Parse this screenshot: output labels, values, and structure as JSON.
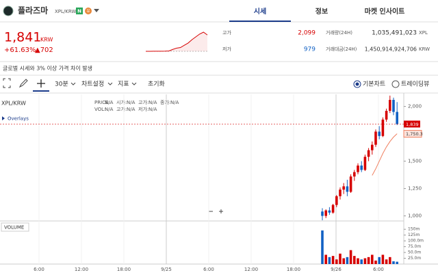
{
  "header": {
    "name": "플라즈마",
    "pair": "XPL/KRW",
    "badges": [
      "N",
      "유"
    ]
  },
  "tabs": [
    "시세",
    "정보",
    "마켓 인사이트"
  ],
  "active_tab": 0,
  "price": {
    "current": "1,841",
    "unit": "KRW",
    "change_rate": "+61.63%",
    "change": "▲702"
  },
  "sparkline": [
    980,
    982,
    985,
    983,
    986,
    990,
    1000,
    1080,
    1150,
    1180,
    1300,
    1420,
    1600,
    1750,
    1900,
    2000,
    1850
  ],
  "stats": [
    {
      "label": "고가",
      "value": "2,099"
    },
    {
      "label": "저가",
      "value": "979"
    },
    {
      "label": "거래량(24H)",
      "value": "1,035,491,023",
      "unit": "XPL"
    },
    {
      "label": "거래대금(24H)",
      "value": "1,450,914,924,706",
      "unit": "KRW"
    }
  ],
  "notice": "글로벌 시세와 3% 이상 가격 차이 발생",
  "toolbar": {
    "interval": "30분",
    "buttons": [
      "차트설정",
      "지표",
      "초기화"
    ],
    "views": [
      "기본차트",
      "트레이딩뷰"
    ],
    "selected_view": 0
  },
  "chart_data": {
    "type": "candlestick",
    "title": "XPL/KRW",
    "overlays": "Overlays",
    "volume_title": "VOLUME",
    "info": [
      [
        [
          "PRICE:",
          "N/A"
        ],
        [
          "시가:",
          "N/A"
        ],
        [
          "고가:",
          "N/A"
        ],
        [
          "종가:",
          "N/A"
        ]
      ],
      [
        [
          "VOL:",
          "N/A"
        ],
        [
          "고가:",
          "N/A"
        ],
        [
          "저가:",
          "N/A"
        ]
      ]
    ],
    "x_labels": [
      "6:00",
      "12:00",
      "18:00",
      "9/25",
      "6:00",
      "12:00",
      "18:00",
      "9/26",
      "6:00"
    ],
    "open": [
      1040,
      1000,
      1050,
      1030,
      1100,
      1180,
      1240,
      1270,
      1220,
      1360,
      1400,
      1460,
      1420,
      1540,
      1600,
      1650,
      1770,
      1730,
      1880,
      1960,
      2060,
      1950
    ],
    "high": [
      1070,
      1060,
      1080,
      1110,
      1190,
      1260,
      1300,
      1330,
      1380,
      1420,
      1480,
      1500,
      1560,
      1620,
      1680,
      1790,
      1820,
      1900,
      1980,
      2099,
      2080,
      2040
    ],
    "low": [
      960,
      980,
      1010,
      1020,
      1080,
      1150,
      1200,
      1180,
      1210,
      1320,
      1380,
      1400,
      1410,
      1500,
      1560,
      1630,
      1700,
      1720,
      1860,
      1940,
      1920,
      1830
    ],
    "close": [
      1000,
      1050,
      1030,
      1100,
      1180,
      1240,
      1270,
      1220,
      1360,
      1400,
      1460,
      1420,
      1540,
      1600,
      1650,
      1770,
      1730,
      1880,
      1960,
      2060,
      1950,
      1839
    ],
    "volume": [
      145,
      40,
      30,
      35,
      20,
      45,
      25,
      30,
      60,
      35,
      25,
      20,
      25,
      30,
      40,
      15,
      30,
      40,
      20,
      30,
      12,
      10
    ],
    "ma": [
      null,
      null,
      null,
      null,
      null,
      null,
      null,
      null,
      null,
      null,
      null,
      null,
      null,
      null,
      1370,
      1430,
      1500,
      1570,
      1630,
      1680,
      1720,
      1750.3
    ],
    "ylim": [
      960,
      2110
    ],
    "yticks": [
      {
        "value": 1000,
        "label": "1,000"
      },
      {
        "value": 1250,
        "label": "1,250"
      },
      {
        "value": 1500,
        "label": "1,500"
      },
      {
        "value": 1750,
        "label": "1,750"
      },
      {
        "value": 2000,
        "label": "2,000"
      }
    ],
    "y2lim": [
      0,
      180
    ],
    "y2ticks": [
      {
        "value": 25,
        "label": "25.0m"
      },
      {
        "value": 50,
        "label": "50.0m"
      },
      {
        "value": 75,
        "label": "75.0m"
      },
      {
        "value": 100,
        "label": "100.0m"
      },
      {
        "value": 125,
        "label": "125m"
      },
      {
        "value": 150,
        "label": "150m"
      }
    ],
    "last_price": {
      "value": 1839,
      "label": "1,839"
    },
    "ma_last": {
      "value": 1750.3,
      "label": "1,750.3"
    },
    "up_color": "#d60000",
    "down_color": "#1261c4",
    "ma_color": "#f08060"
  }
}
